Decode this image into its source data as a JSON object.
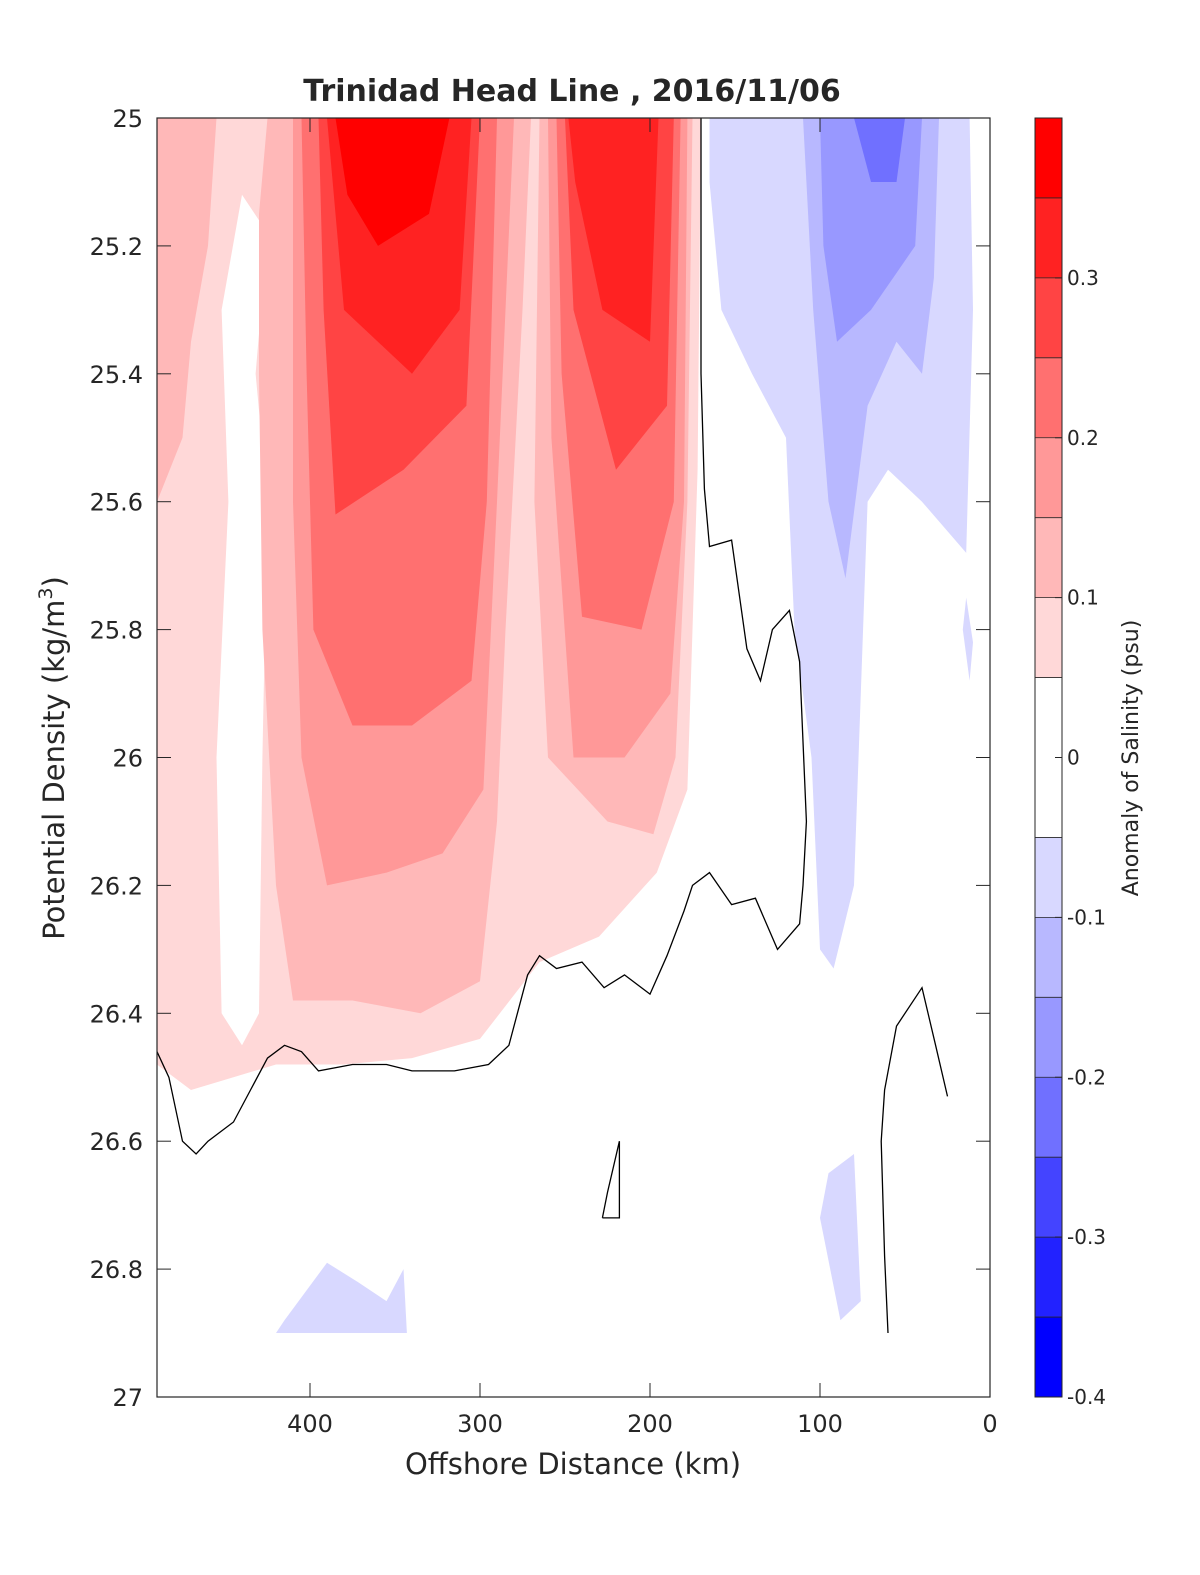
{
  "chart_data": {
    "type": "heatmap",
    "subtype": "filled-contour",
    "title": "Trinidad Head Line , 2016/11/06",
    "xlabel": "Offshore Distance (km)",
    "ylabel": "Potential Density (kg/m",
    "ylabel_sup": "3",
    "ylabel_close": ")",
    "xlim": [
      490,
      0
    ],
    "x_reversed": true,
    "ylim": [
      25,
      27
    ],
    "y_reversed": true,
    "xticks": [
      {
        "value": 400,
        "label": "400"
      },
      {
        "value": 300,
        "label": "300"
      },
      {
        "value": 200,
        "label": "200"
      },
      {
        "value": 100,
        "label": "100"
      },
      {
        "value": 0,
        "label": "0"
      }
    ],
    "yticks": [
      {
        "value": 25,
        "label": "25"
      },
      {
        "value": 25.2,
        "label": "25.2"
      },
      {
        "value": 25.4,
        "label": "25.4"
      },
      {
        "value": 25.6,
        "label": "25.6"
      },
      {
        "value": 25.8,
        "label": "25.8"
      },
      {
        "value": 26,
        "label": "26"
      },
      {
        "value": 26.2,
        "label": "26.2"
      },
      {
        "value": 26.4,
        "label": "26.4"
      },
      {
        "value": 26.6,
        "label": "26.6"
      },
      {
        "value": 26.8,
        "label": "26.8"
      },
      {
        "value": 27,
        "label": "27"
      }
    ],
    "colorbar": {
      "label": "Anomaly of Salinity (psu)",
      "range": [
        -0.4,
        0.4
      ],
      "levels": [
        -0.4,
        -0.35,
        -0.3,
        -0.25,
        -0.2,
        -0.15,
        -0.1,
        -0.05,
        0.05,
        0.1,
        0.15,
        0.2,
        0.25,
        0.3,
        0.35,
        0.4
      ],
      "ticks": [
        {
          "value": 0.3,
          "label": "0.3"
        },
        {
          "value": 0.2,
          "label": "0.2"
        },
        {
          "value": 0.1,
          "label": "0.1"
        },
        {
          "value": 0,
          "label": "0"
        },
        {
          "value": -0.1,
          "label": "-0.1"
        },
        {
          "value": -0.2,
          "label": "-0.2"
        },
        {
          "value": -0.3,
          "label": "-0.3"
        },
        {
          "value": -0.4,
          "label": "-0.4"
        }
      ],
      "colors": [
        "#0000ff",
        "#2222ff",
        "#4444ff",
        "#7070ff",
        "#9898ff",
        "#b8b8ff",
        "#d8d8ff",
        "#ffffff",
        "#ffd8d8",
        "#ffb8b8",
        "#ff9898",
        "#ff7070",
        "#ff4444",
        "#ff2222",
        "#ff0000"
      ]
    },
    "regions": [
      {
        "name": "pos-0.05-west",
        "level": 0.05,
        "points": [
          [
            490,
            25
          ],
          [
            170,
            25
          ],
          [
            172,
            25.55
          ],
          [
            178,
            26.05
          ],
          [
            196,
            26.18
          ],
          [
            230,
            26.28
          ],
          [
            265,
            26.32
          ],
          [
            300,
            26.44
          ],
          [
            340,
            26.47
          ],
          [
            380,
            26.48
          ],
          [
            420,
            26.48
          ],
          [
            470,
            26.52
          ],
          [
            490,
            26.48
          ]
        ]
      },
      {
        "name": "zero-west-strip",
        "level": 0.0,
        "points": [
          [
            440,
            25.12
          ],
          [
            425,
            25.18
          ],
          [
            432,
            25.4
          ],
          [
            425,
            25.6
          ],
          [
            428,
            26.0
          ],
          [
            430,
            26.4
          ],
          [
            440,
            26.45
          ],
          [
            452,
            26.4
          ],
          [
            455,
            26.0
          ],
          [
            448,
            25.6
          ],
          [
            452,
            25.3
          ]
        ]
      },
      {
        "name": "pos-0.1-west",
        "level": 0.1,
        "points": [
          [
            490,
            25
          ],
          [
            455,
            25
          ],
          [
            460,
            25.2
          ],
          [
            470,
            25.35
          ],
          [
            475,
            25.5
          ],
          [
            490,
            25.6
          ]
        ]
      },
      {
        "name": "pos-0.1-main",
        "level": 0.1,
        "points": [
          [
            425,
            25
          ],
          [
            270,
            25
          ],
          [
            275,
            25.3
          ],
          [
            285,
            25.8
          ],
          [
            290,
            26.1
          ],
          [
            300,
            26.35
          ],
          [
            335,
            26.4
          ],
          [
            375,
            26.38
          ],
          [
            410,
            26.38
          ],
          [
            420,
            26.2
          ],
          [
            428,
            25.8
          ],
          [
            430,
            25.4
          ],
          [
            430,
            25.15
          ]
        ]
      },
      {
        "name": "pos-0.1-mid",
        "level": 0.1,
        "points": [
          [
            265,
            25
          ],
          [
            175,
            25
          ],
          [
            178,
            25.6
          ],
          [
            185,
            26.0
          ],
          [
            198,
            26.12
          ],
          [
            225,
            26.1
          ],
          [
            260,
            26.0
          ],
          [
            268,
            25.6
          ]
        ]
      },
      {
        "name": "pos-0.15-main",
        "level": 0.15,
        "points": [
          [
            410,
            25
          ],
          [
            280,
            25
          ],
          [
            290,
            25.6
          ],
          [
            298,
            26.05
          ],
          [
            322,
            26.15
          ],
          [
            355,
            26.18
          ],
          [
            390,
            26.2
          ],
          [
            405,
            26.0
          ],
          [
            410,
            25.6
          ]
        ]
      },
      {
        "name": "pos-0.15-mid",
        "level": 0.15,
        "points": [
          [
            260,
            25
          ],
          [
            178,
            25
          ],
          [
            180,
            25.6
          ],
          [
            188,
            25.9
          ],
          [
            215,
            26.0
          ],
          [
            245,
            26.0
          ],
          [
            258,
            25.5
          ]
        ]
      },
      {
        "name": "pos-0.2-main",
        "level": 0.2,
        "points": [
          [
            405,
            25
          ],
          [
            290,
            25
          ],
          [
            296,
            25.6
          ],
          [
            305,
            25.88
          ],
          [
            340,
            25.95
          ],
          [
            375,
            25.95
          ],
          [
            398,
            25.8
          ],
          [
            402,
            25.4
          ]
        ]
      },
      {
        "name": "pos-0.2-mid",
        "level": 0.2,
        "points": [
          [
            255,
            25
          ],
          [
            182,
            25
          ],
          [
            186,
            25.6
          ],
          [
            205,
            25.8
          ],
          [
            240,
            25.78
          ],
          [
            252,
            25.4
          ]
        ]
      },
      {
        "name": "pos-0.25-main",
        "level": 0.25,
        "points": [
          [
            395,
            25
          ],
          [
            300,
            25
          ],
          [
            308,
            25.45
          ],
          [
            345,
            25.55
          ],
          [
            385,
            25.62
          ],
          [
            392,
            25.3
          ]
        ]
      },
      {
        "name": "pos-0.25-mid",
        "level": 0.25,
        "points": [
          [
            250,
            25
          ],
          [
            186,
            25
          ],
          [
            190,
            25.45
          ],
          [
            220,
            25.55
          ],
          [
            245,
            25.3
          ]
        ]
      },
      {
        "name": "pos-0.3-main",
        "level": 0.3,
        "points": [
          [
            390,
            25
          ],
          [
            305,
            25
          ],
          [
            312,
            25.3
          ],
          [
            340,
            25.4
          ],
          [
            380,
            25.3
          ]
        ]
      },
      {
        "name": "pos-0.3-mid",
        "level": 0.3,
        "points": [
          [
            248,
            25
          ],
          [
            195,
            25
          ],
          [
            200,
            25.35
          ],
          [
            228,
            25.3
          ],
          [
            244,
            25.1
          ]
        ]
      },
      {
        "name": "pos-0.35-core",
        "level": 0.35,
        "points": [
          [
            385,
            25
          ],
          [
            318,
            25
          ],
          [
            330,
            25.15
          ],
          [
            360,
            25.2
          ],
          [
            378,
            25.12
          ]
        ]
      },
      {
        "name": "neg-0.05-east",
        "level": -0.1,
        "points": [
          [
            165,
            25
          ],
          [
            12,
            25
          ],
          [
            10,
            25.3
          ],
          [
            14,
            25.68
          ],
          [
            40,
            25.6
          ],
          [
            60,
            25.55
          ],
          [
            72,
            25.6
          ],
          [
            76,
            25.9
          ],
          [
            80,
            26.2
          ],
          [
            92,
            26.33
          ],
          [
            100,
            26.3
          ],
          [
            105,
            26.0
          ],
          [
            115,
            25.8
          ],
          [
            120,
            25.5
          ],
          [
            140,
            25.4
          ],
          [
            158,
            25.3
          ],
          [
            165,
            25.1
          ]
        ]
      },
      {
        "name": "neg-0.05-east-strip",
        "level": -0.1,
        "points": [
          [
            14,
            25.75
          ],
          [
            10,
            25.82
          ],
          [
            12,
            25.88
          ],
          [
            16,
            25.8
          ]
        ]
      },
      {
        "name": "neg-0.15-east",
        "level": -0.15,
        "points": [
          [
            110,
            25
          ],
          [
            30,
            25
          ],
          [
            33,
            25.25
          ],
          [
            40,
            25.4
          ],
          [
            55,
            25.35
          ],
          [
            72,
            25.45
          ],
          [
            85,
            25.72
          ],
          [
            95,
            25.6
          ],
          [
            104,
            25.3
          ]
        ]
      },
      {
        "name": "neg-0.2-east",
        "level": -0.2,
        "points": [
          [
            100,
            25
          ],
          [
            40,
            25
          ],
          [
            44,
            25.2
          ],
          [
            70,
            25.3
          ],
          [
            90,
            25.35
          ],
          [
            98,
            25.2
          ]
        ]
      },
      {
        "name": "neg-0.25-east",
        "level": -0.25,
        "points": [
          [
            80,
            25
          ],
          [
            50,
            25
          ],
          [
            55,
            25.1
          ],
          [
            70,
            25.1
          ]
        ]
      },
      {
        "name": "neg-0.05-deep-east",
        "level": -0.1,
        "points": [
          [
            95,
            26.65
          ],
          [
            80,
            26.62
          ],
          [
            76,
            26.85
          ],
          [
            88,
            26.88
          ],
          [
            100,
            26.72
          ]
        ]
      },
      {
        "name": "neg-0.05-deep-west",
        "level": -0.1,
        "points": [
          [
            415,
            26.88
          ],
          [
            390,
            26.79
          ],
          [
            372,
            26.82
          ],
          [
            355,
            26.85
          ],
          [
            345,
            26.8
          ],
          [
            343,
            26.9
          ],
          [
            420,
            26.9
          ]
        ]
      }
    ],
    "zero_contours": [
      {
        "name": "zero-line-main",
        "points": [
          [
            490,
            26.46
          ],
          [
            483,
            26.5
          ],
          [
            475,
            26.6
          ],
          [
            467,
            26.62
          ],
          [
            460,
            26.6
          ],
          [
            445,
            26.57
          ],
          [
            435,
            26.52
          ],
          [
            425,
            26.47
          ],
          [
            415,
            26.45
          ],
          [
            405,
            26.46
          ],
          [
            395,
            26.49
          ],
          [
            375,
            26.48
          ],
          [
            355,
            26.48
          ],
          [
            340,
            26.49
          ],
          [
            315,
            26.49
          ],
          [
            295,
            26.48
          ],
          [
            283,
            26.45
          ],
          [
            278,
            26.4
          ],
          [
            272,
            26.34
          ],
          [
            265,
            26.31
          ],
          [
            255,
            26.33
          ],
          [
            240,
            26.32
          ],
          [
            227,
            26.36
          ],
          [
            215,
            26.34
          ],
          [
            200,
            26.37
          ],
          [
            190,
            26.31
          ],
          [
            180,
            26.24
          ],
          [
            175,
            26.2
          ],
          [
            165,
            26.18
          ],
          [
            152,
            26.23
          ],
          [
            138,
            26.22
          ],
          [
            125,
            26.3
          ],
          [
            112,
            26.26
          ],
          [
            110,
            26.2
          ],
          [
            108,
            26.1
          ],
          [
            112,
            25.85
          ],
          [
            118,
            25.77
          ],
          [
            128,
            25.8
          ],
          [
            135,
            25.88
          ],
          [
            143,
            25.83
          ],
          [
            152,
            25.66
          ],
          [
            165,
            25.67
          ],
          [
            168,
            25.58
          ],
          [
            170,
            25.4
          ],
          [
            170,
            25.2
          ],
          [
            170,
            25
          ]
        ]
      },
      {
        "name": "zero-line-east",
        "points": [
          [
            60,
            26.9
          ],
          [
            62,
            26.78
          ],
          [
            64,
            26.6
          ],
          [
            62,
            26.52
          ],
          [
            55,
            26.42
          ],
          [
            40,
            26.36
          ],
          [
            32,
            26.45
          ],
          [
            25,
            26.53
          ]
        ]
      },
      {
        "name": "zero-line-loop",
        "points": [
          [
            228,
            26.72
          ],
          [
            218,
            26.72
          ],
          [
            218,
            26.6
          ],
          [
            225,
            26.68
          ],
          [
            228,
            26.72
          ]
        ]
      }
    ]
  }
}
